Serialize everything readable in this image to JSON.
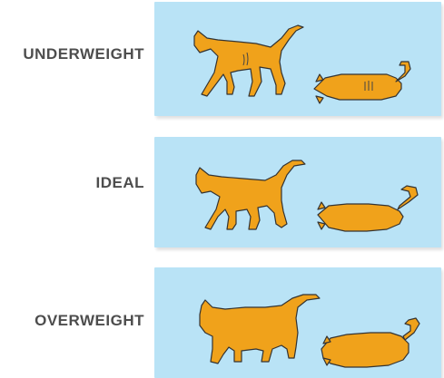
{
  "colors": {
    "panel_bg": "#b9e3f6",
    "cat_fill": "#f0a21b",
    "cat_stroke": "#333333",
    "label": "#4d4d4d"
  },
  "rows": [
    {
      "label": "UNDERWEIGHT",
      "side_icon": "thin-cat-side-icon",
      "top_icon": "thin-cat-top-icon"
    },
    {
      "label": "IDEAL",
      "side_icon": "ideal-cat-side-icon",
      "top_icon": "ideal-cat-top-icon"
    },
    {
      "label": "OVERWEIGHT",
      "side_icon": "fat-cat-side-icon",
      "top_icon": "fat-cat-top-icon"
    }
  ]
}
